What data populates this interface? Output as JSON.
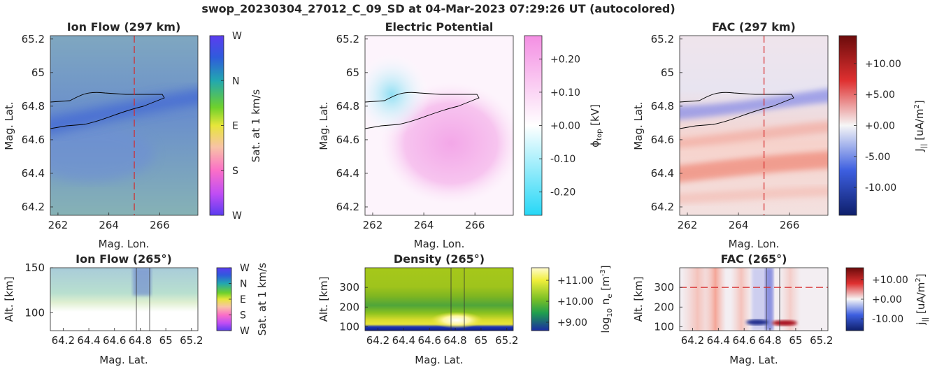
{
  "figure_title": "swop_20230304_27012_C_09_SD at 04-Mar-2023 07:29:26 UT (autocolored)",
  "colors": {
    "axis": "#262626",
    "cut_line": "#d62728",
    "contour": "#000000",
    "ion_field": "#6a92c8",
    "ion_band": "#3e63d6",
    "potential_pos": "#f39ce6",
    "potential_neg": "#66d6f2",
    "fac_pos": "#c0282a",
    "fac_neg": "#2f46c4",
    "density_green": "#8fc21f",
    "density_blue": "#1c2fa8",
    "density_yellow": "#fffa9c"
  },
  "chart_data": [
    {
      "type": "heatmap",
      "title": "Ion Flow (297 km)",
      "xlabel": "Mag. Lon.",
      "ylabel": "Mag. Lat.",
      "xlim": [
        261.7,
        267.5
      ],
      "ylim": [
        64.15,
        65.22
      ],
      "xticks": [
        "262",
        "264",
        "266"
      ],
      "yticks": [
        "64.2",
        "64.4",
        "64.6",
        "64.8",
        "65",
        "65.2"
      ],
      "cut_line_lon": 265,
      "colorbar": {
        "label": "Sat. at 1 km/s",
        "ticks": [
          "W",
          "N",
          "E",
          "S",
          "W"
        ]
      }
    },
    {
      "type": "heatmap",
      "title": "Electric Potential",
      "xlabel": "Mag. Lon.",
      "ylabel": "Mag. Lat.",
      "xlim": [
        261.7,
        267.5
      ],
      "ylim": [
        64.15,
        65.22
      ],
      "xticks": [
        "262",
        "264",
        "266"
      ],
      "yticks": [
        "64.2",
        "64.4",
        "64.6",
        "64.8",
        "65",
        "65.2"
      ],
      "colorbar": {
        "label": "ϕ_top [kV]",
        "label_main": "ϕ",
        "label_sub": "top",
        "label_unit": " [kV]",
        "ticks": [
          "+0.20",
          "+0.10",
          "+0.00",
          "-0.10",
          "-0.20"
        ],
        "range": [
          -0.27,
          0.27
        ]
      }
    },
    {
      "type": "heatmap",
      "title": "FAC (297 km)",
      "xlabel": "Mag. Lon.",
      "ylabel": "Mag. Lat.",
      "xlim": [
        261.7,
        267.5
      ],
      "ylim": [
        64.15,
        65.22
      ],
      "xticks": [
        "262",
        "264",
        "266"
      ],
      "yticks": [
        "64.2",
        "64.4",
        "64.6",
        "64.8",
        "65",
        "65.2"
      ],
      "cut_line_lon": 265,
      "colorbar": {
        "label": "J_|| [uA/m^2]",
        "label_main": "J",
        "label_sub": "||",
        "label_unit": " [uA/m",
        "label_sup": "2",
        "label_end": "]",
        "ticks": [
          "+10.00",
          "+5.00",
          "+0.00",
          "-5.00",
          "-10.00"
        ],
        "range": [
          -14.5,
          14.5
        ]
      }
    },
    {
      "type": "heatmap",
      "title": "Ion Flow (265°)",
      "xlabel": "Mag. Lat.",
      "ylabel": "Alt. [km]",
      "xlim": [
        64.1,
        65.25
      ],
      "ylim": [
        80,
        150
      ],
      "xticks": [
        "64.2",
        "64.4",
        "64.6",
        "64.8",
        "65",
        "65.2"
      ],
      "yticks": [
        "100",
        "150"
      ],
      "colorbar": {
        "label": "Sat. at 1 km/s",
        "ticks": [
          "W",
          "N",
          "E",
          "S",
          "W"
        ]
      }
    },
    {
      "type": "heatmap",
      "title": "Density (265°)",
      "xlabel": "Mag. Lat.",
      "ylabel": "Alt. [km]",
      "xlim": [
        64.1,
        65.25
      ],
      "ylim": [
        80,
        400
      ],
      "xticks": [
        "64.2",
        "64.4",
        "64.6",
        "64.8",
        "65",
        "65.2"
      ],
      "yticks": [
        "100",
        "200",
        "300"
      ],
      "colorbar": {
        "label": "log10 n_e [m^-3]",
        "label_pre": "log",
        "label_pre_sub": "10",
        "label_main": " n",
        "label_sub": "e",
        "label_unit": " [m",
        "label_sup": "-3",
        "label_end": "]",
        "ticks": [
          "+11.00",
          "+10.00",
          "+9.00"
        ],
        "range": [
          8.6,
          11.6
        ]
      }
    },
    {
      "type": "heatmap",
      "title": "FAC (265°)",
      "xlabel": "Mag. Lat.",
      "ylabel": "Alt. [km]",
      "xlim": [
        64.1,
        65.25
      ],
      "ylim": [
        80,
        400
      ],
      "xticks": [
        "64.2",
        "64.4",
        "64.6",
        "64.8",
        "65",
        "65.2"
      ],
      "yticks": [
        "100",
        "200",
        "300"
      ],
      "cut_line_alt": 300,
      "colorbar": {
        "label": "j_|| [uA/m^2]",
        "label_main": "j",
        "label_sub": "||",
        "label_unit": " [uA/m",
        "label_sup": "2",
        "label_end": "]",
        "ticks": [
          "+10.00",
          "+0.00",
          "-10.00"
        ],
        "range": [
          -16,
          16
        ]
      }
    }
  ]
}
